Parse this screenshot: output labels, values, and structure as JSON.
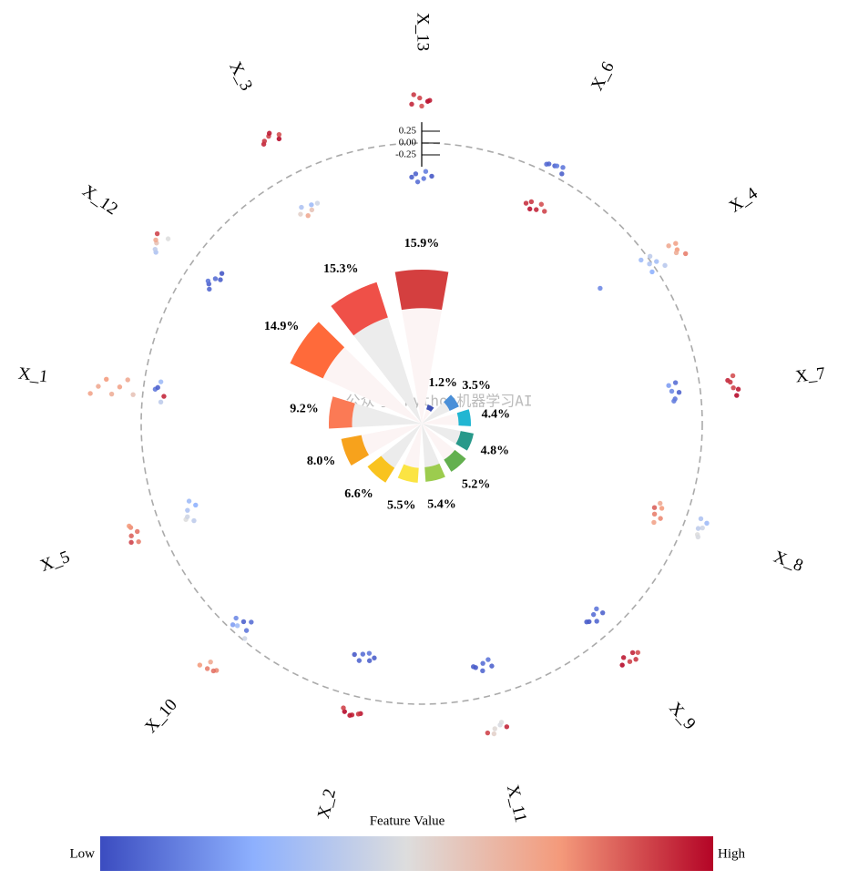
{
  "chart_data": {
    "type": "radial-shap",
    "watermark": "公众号：Python机器学习AI",
    "categories": [
      "X_13",
      "X_3",
      "X_12",
      "X_1",
      "X_5",
      "X_10",
      "X_2",
      "X_11",
      "X_9",
      "X_8",
      "X_7",
      "X_4",
      "X_6"
    ],
    "values": [
      15.9,
      15.3,
      14.9,
      9.2,
      8.0,
      6.6,
      5.5,
      5.4,
      5.2,
      4.8,
      4.4,
      3.5,
      1.2
    ],
    "value_labels": [
      "15.9%",
      "15.3%",
      "14.9%",
      "9.2%",
      "8.0%",
      "6.6%",
      "5.5%",
      "5.4%",
      "5.2%",
      "4.8%",
      "4.4%",
      "3.5%",
      "1.2%"
    ],
    "colors": [
      "#d43f3f",
      "#ef5048",
      "#ff6a3a",
      "#fb7a55",
      "#f7a21c",
      "#f9c31f",
      "#fbe443",
      "#9ccc4e",
      "#63b04f",
      "#28998a",
      "#22b6d2",
      "#4a8fd8",
      "#3f51b5"
    ],
    "shap": [
      [
        0.82,
        0.95,
        0.88,
        1.02,
        0.78,
        0.9,
        -0.65,
        -0.75,
        -0.7,
        -0.82,
        -0.6,
        -0.72
      ],
      [
        0.85,
        0.95,
        0.8,
        0.9,
        1.0,
        0.88,
        -0.7,
        -0.85,
        -0.78,
        -0.92,
        -0.75,
        -0.82
      ],
      [
        0.75,
        0.85,
        0.95,
        0.8,
        0.9,
        0.7,
        -0.55,
        -0.6,
        -0.65,
        -0.5,
        -0.7,
        -0.62
      ],
      [
        1.1,
        0.95,
        0.8,
        0.65,
        0.5,
        0.35,
        0.2,
        -0.25,
        -0.35,
        -0.45,
        -0.3,
        -0.4
      ],
      [
        0.55,
        0.65,
        0.6,
        0.7,
        0.5,
        0.62,
        -0.55,
        -0.65,
        -0.75,
        -0.6,
        -0.85,
        -0.7
      ],
      [
        0.85,
        0.95,
        1.0,
        0.9,
        0.8,
        -0.1,
        -0.2,
        -0.3,
        -0.25,
        -0.4,
        -0.15,
        -0.05
      ],
      [
        0.33,
        0.4,
        0.37,
        0.35,
        0.42,
        0.3,
        -0.8,
        -0.9,
        -0.85,
        -0.95,
        -0.75,
        -0.88
      ],
      [
        -0.6,
        -0.7,
        -0.65,
        -0.75,
        -0.55,
        -0.68,
        0.6,
        0.7,
        0.75,
        0.65,
        0.8,
        0.72
      ],
      [
        -0.4,
        -0.5,
        -0.45,
        -0.55,
        -0.35,
        -0.48,
        0.65,
        0.75,
        0.7,
        0.8,
        0.6,
        0.72
      ],
      [
        0.3,
        0.4,
        0.35,
        0.45,
        0.32,
        0.38,
        -0.55,
        -0.65,
        -0.6,
        -0.7,
        -0.5,
        -0.62
      ],
      [
        -0.5,
        -0.6,
        -0.55,
        -0.65,
        -0.45,
        -0.58,
        0.6,
        0.7,
        0.75,
        0.65,
        0.8,
        0.72
      ],
      [
        -0.15,
        -0.05,
        -0.1,
        0.05,
        0.1,
        0.2,
        0.5,
        0.6,
        0.7,
        0.65,
        0.55,
        -1.2
      ],
      [
        0.15,
        0.2,
        0.25,
        0.18,
        0.22,
        0.12,
        -0.7,
        -0.8,
        -0.75,
        -0.85,
        -0.65,
        -0.78
      ]
    ],
    "feature_values": [
      [
        0.95,
        0.9,
        1,
        0.92,
        0.88,
        0.97,
        0.05,
        0.1,
        0.02,
        0.08,
        0.12,
        0.04
      ],
      [
        0.95,
        0.9,
        1,
        0.92,
        0.97,
        0.88,
        0.35,
        0.6,
        0.45,
        0.7,
        0.3,
        0.55
      ],
      [
        0.35,
        0.6,
        0.9,
        0.4,
        0.7,
        0.5,
        0.05,
        0.08,
        0.02,
        0.1,
        0.04,
        0.06
      ],
      [
        0.72,
        0.7,
        0.75,
        0.68,
        0.72,
        0.7,
        0.6,
        0.1,
        0.3,
        0.95,
        0.05,
        0.4
      ],
      [
        0.8,
        0.85,
        0.78,
        0.9,
        0.82,
        0.75,
        0.5,
        0.35,
        0.3,
        0.45,
        0.25,
        0.4
      ],
      [
        0.78,
        0.8,
        0.75,
        0.82,
        0.7,
        0.2,
        0.1,
        0.05,
        0.15,
        0.08,
        0.3,
        0.45
      ],
      [
        0.98,
        0.95,
        1,
        0.92,
        0.97,
        0.9,
        0.05,
        0.08,
        0.03,
        0.1,
        0.06,
        0.04
      ],
      [
        0.05,
        0.08,
        0.03,
        0.1,
        0.06,
        0.04,
        0.5,
        0.52,
        0.9,
        0.48,
        0.55,
        0.95
      ],
      [
        0.05,
        0.08,
        0.03,
        0.1,
        0.06,
        0.04,
        0.95,
        0.9,
        1,
        0.92,
        0.97,
        0.88
      ],
      [
        0.35,
        0.45,
        0.5,
        0.3,
        0.4,
        0.48,
        0.75,
        0.8,
        0.72,
        0.85,
        0.78,
        0.7
      ],
      [
        0.08,
        0.15,
        0.1,
        0.2,
        0.05,
        0.12,
        0.95,
        0.9,
        1,
        0.92,
        0.97,
        0.88
      ],
      [
        0.3,
        0.35,
        0.25,
        0.4,
        0.32,
        0.38,
        0.7,
        0.75,
        0.8,
        0.72,
        0.68,
        0.15
      ],
      [
        0.08,
        0.05,
        0.1,
        0.06,
        0.12,
        0.04,
        0.92,
        0.95,
        0.9,
        0.98,
        0.88,
        0.93
      ]
    ],
    "yticks": [
      0.25,
      {
        "value": 0,
        "label": "0.00"
      },
      -0.25
    ],
    "colorbar": {
      "title": "Feature Value",
      "low": "Low",
      "high": "High"
    }
  }
}
